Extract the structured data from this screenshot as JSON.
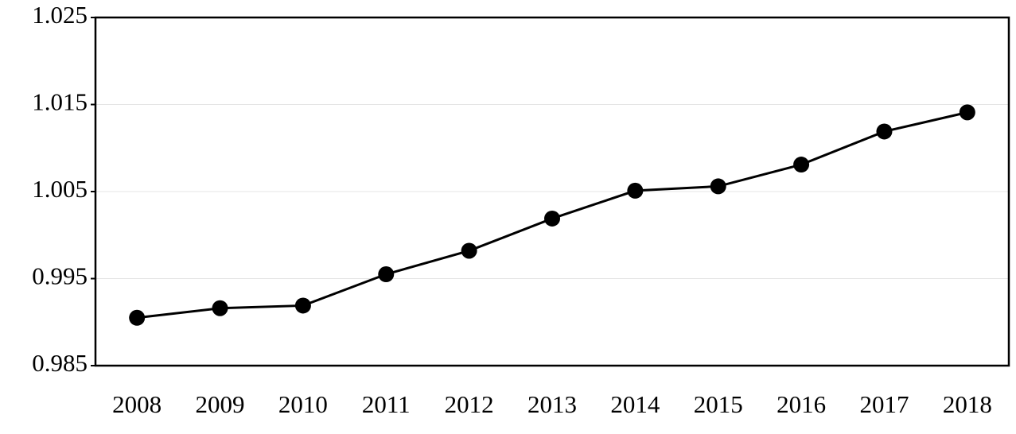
{
  "chart_data": {
    "type": "line",
    "categories": [
      "2008",
      "2009",
      "2010",
      "2011",
      "2012",
      "2013",
      "2014",
      "2015",
      "2016",
      "2017",
      "2018"
    ],
    "values": [
      0.9905,
      0.9916,
      0.9919,
      0.9955,
      0.9982,
      1.0019,
      1.0051,
      1.0056,
      1.0081,
      1.0119,
      1.0141
    ],
    "color": "#000000",
    "ylim": [
      0.985,
      1.025
    ],
    "yticks": [
      0.985,
      0.995,
      1.005,
      1.015,
      1.025
    ],
    "grid": true
  }
}
